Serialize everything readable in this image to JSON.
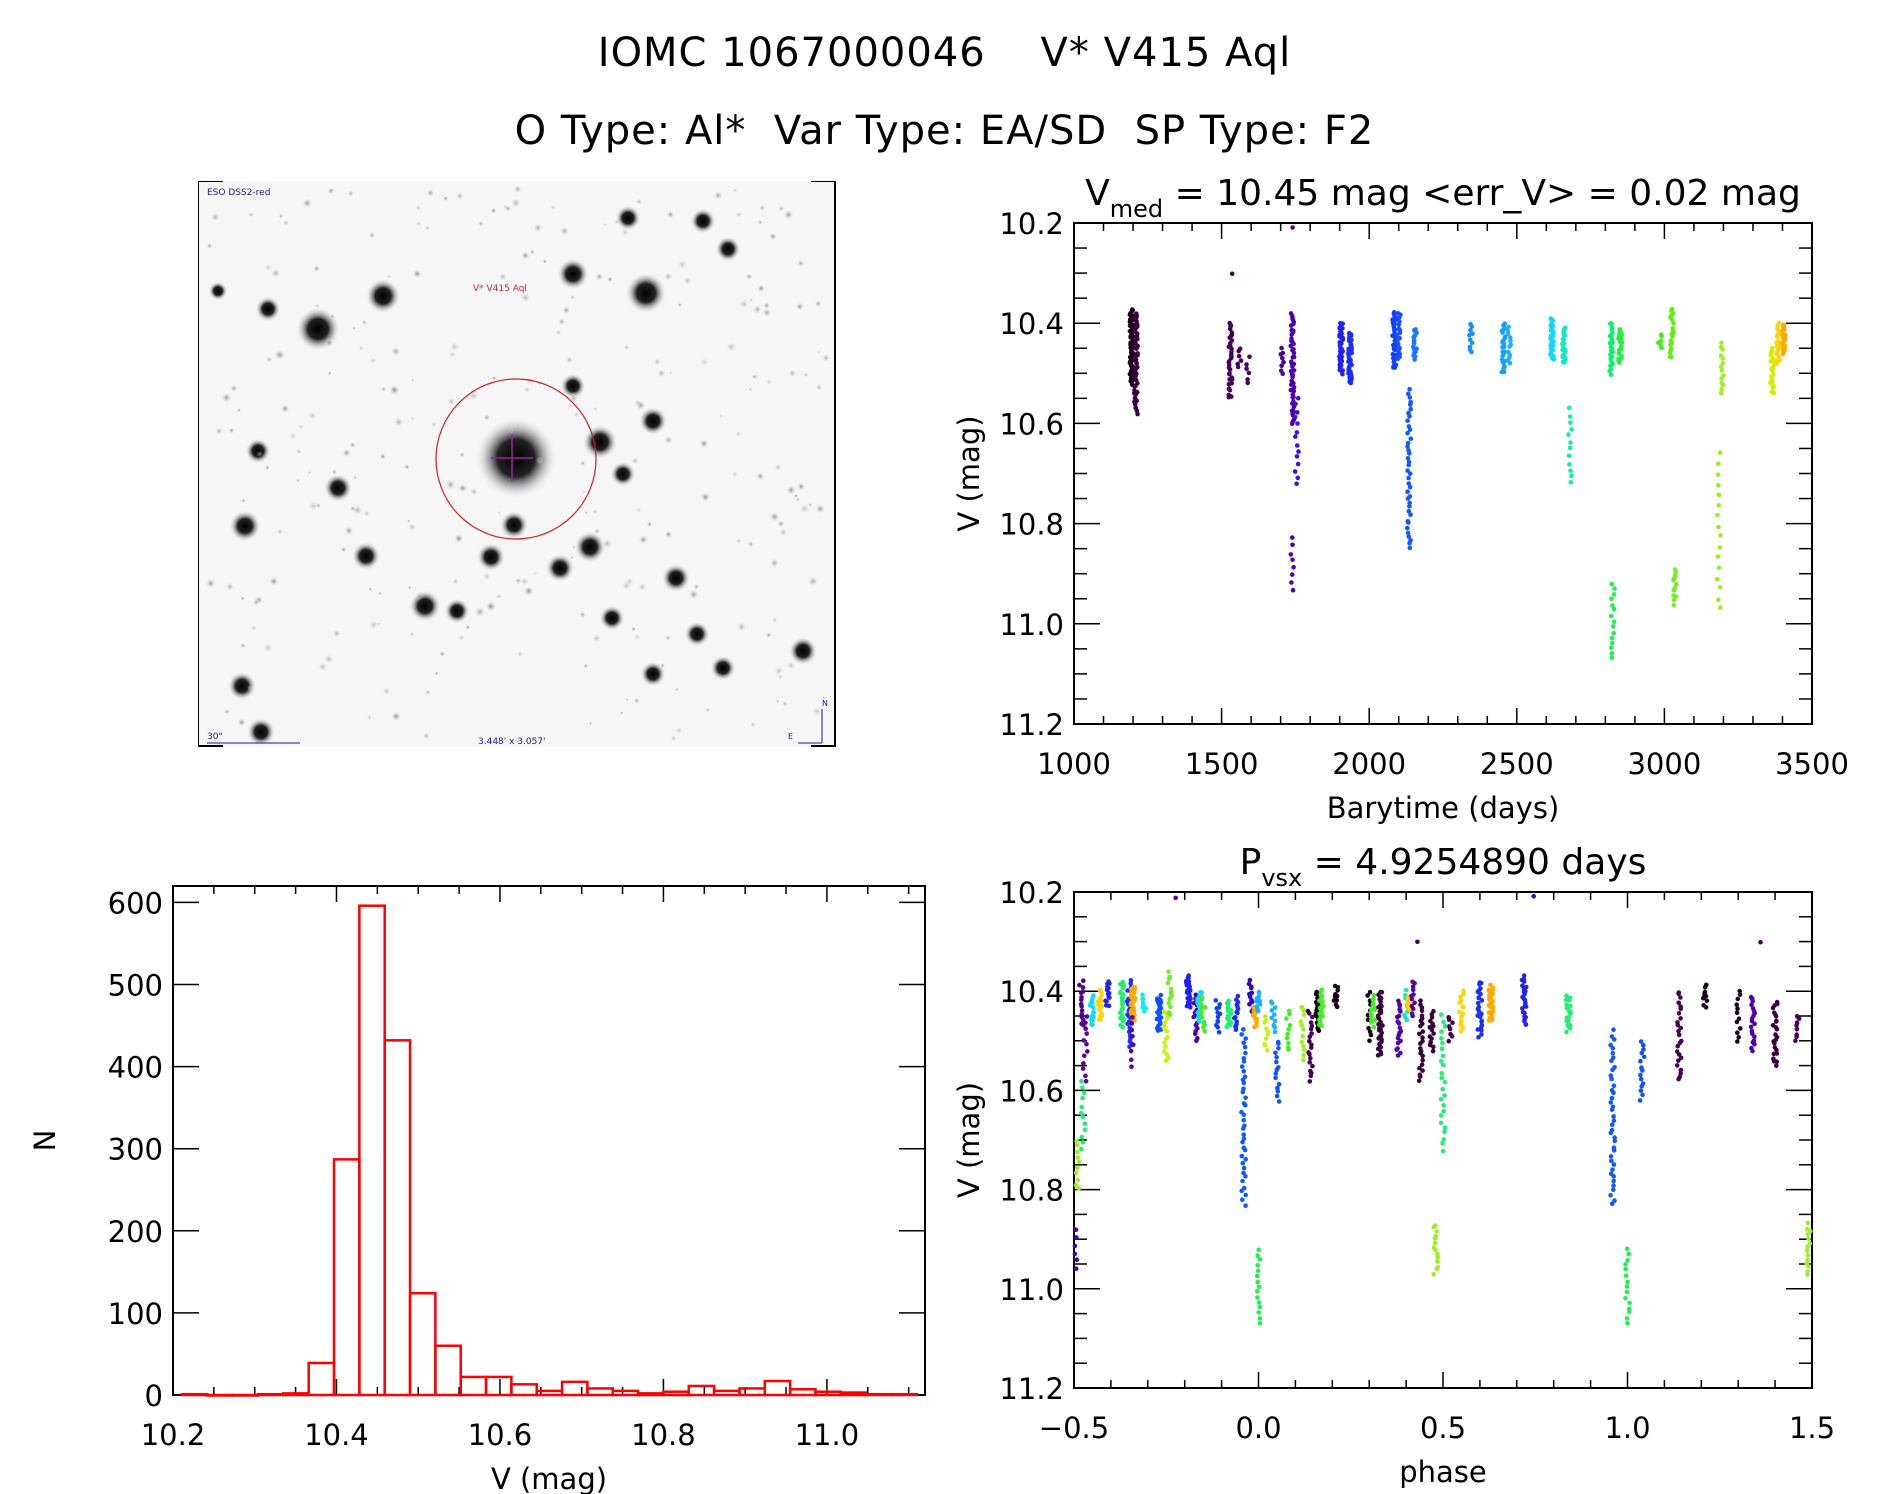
{
  "header": {
    "title_line1": "IOMC 1067000046    V* V415 Aql",
    "title_line2": "O Type: Al*  Var Type: EA/SD  SP Type: F2"
  },
  "finder_image": {
    "survey_label": "ESO DSS2-red",
    "target_label": "V* V415 Aql",
    "scale_bar_label": "30\"",
    "field_size_label": "3.448' x 3.057'",
    "compass": {
      "north": "N",
      "east": "E"
    },
    "colors": {
      "target_circle": "#cc2222",
      "labels": "#1a1a8c",
      "crosshair": "#a020a0"
    }
  },
  "chart_data": [
    {
      "id": "lightcurve",
      "type": "scatter",
      "title_main": "V",
      "title_sub": "med",
      "title_rest": " = 10.45 mag <err_V> = 0.02 mag",
      "xlabel": "Barytime (days)",
      "ylabel": "V (mag)",
      "xlim": [
        1000,
        3500
      ],
      "ylim": [
        11.2,
        10.2
      ],
      "y_inverted": true,
      "xticks": [
        1000,
        1500,
        2000,
        2500,
        3000,
        3500
      ],
      "xtick_labels": [
        "1000",
        "1500",
        "2000",
        "2500",
        "3000",
        "3500"
      ],
      "yticks": [
        10.2,
        10.4,
        10.6,
        10.8,
        11.0,
        11.2
      ],
      "ytick_labels": [
        "10.2",
        "10.4",
        "10.6",
        "10.8",
        "11.0",
        "11.2"
      ],
      "color_scale": "time-ordered rainbow (black → purple → blue → cyan → green → yellow → orange)",
      "groups": [
        {
          "x": 1195,
          "ymin": 10.37,
          "ymax": 10.52,
          "color": "#1a001a",
          "n": 60
        },
        {
          "x": 1210,
          "ymin": 10.38,
          "ymax": 10.58,
          "color": "#3a0040",
          "n": 50
        },
        {
          "x": 1530,
          "ymin": 10.4,
          "ymax": 10.55,
          "color": "#44005a",
          "n": 35
        },
        {
          "x": 1535,
          "ymin": 10.3,
          "ymax": 10.3,
          "color": "#44005a",
          "n": 1
        },
        {
          "x": 1560,
          "ymin": 10.45,
          "ymax": 10.49,
          "color": "#480060",
          "n": 6
        },
        {
          "x": 1590,
          "ymin": 10.47,
          "ymax": 10.52,
          "color": "#4a0068",
          "n": 6
        },
        {
          "x": 1705,
          "ymin": 10.45,
          "ymax": 10.5,
          "color": "#50008a",
          "n": 8
        },
        {
          "x": 1740,
          "ymin": 10.38,
          "ymax": 10.6,
          "color": "#5000aa",
          "n": 50
        },
        {
          "x": 1745,
          "ymin": 10.21,
          "ymax": 10.21,
          "color": "#5000aa",
          "n": 1
        },
        {
          "x": 1740,
          "ymin": 10.83,
          "ymax": 10.93,
          "color": "#5000aa",
          "n": 8
        },
        {
          "x": 1755,
          "ymin": 10.55,
          "ymax": 10.72,
          "color": "#3a10e0",
          "n": 14
        },
        {
          "x": 1905,
          "ymin": 10.4,
          "ymax": 10.5,
          "color": "#2222ee",
          "n": 40
        },
        {
          "x": 1935,
          "ymin": 10.42,
          "ymax": 10.52,
          "color": "#1c2cff",
          "n": 40
        },
        {
          "x": 2085,
          "ymin": 10.38,
          "ymax": 10.49,
          "color": "#1040ff",
          "n": 40
        },
        {
          "x": 2100,
          "ymin": 10.38,
          "ymax": 10.47,
          "color": "#1850ff",
          "n": 20
        },
        {
          "x": 2135,
          "ymin": 10.53,
          "ymax": 10.85,
          "color": "#1058ff",
          "n": 40
        },
        {
          "x": 2155,
          "ymin": 10.41,
          "ymax": 10.47,
          "color": "#1a78ff",
          "n": 20
        },
        {
          "x": 2345,
          "ymin": 10.4,
          "ymax": 10.46,
          "color": "#1890ff",
          "n": 10
        },
        {
          "x": 2455,
          "ymin": 10.4,
          "ymax": 10.5,
          "color": "#12a0ff",
          "n": 25
        },
        {
          "x": 2475,
          "ymin": 10.41,
          "ymax": 10.48,
          "color": "#18b0ff",
          "n": 12
        },
        {
          "x": 2620,
          "ymin": 10.39,
          "ymax": 10.47,
          "color": "#10d8ff",
          "n": 30
        },
        {
          "x": 2660,
          "ymin": 10.41,
          "ymax": 10.48,
          "color": "#10e8c0",
          "n": 25
        },
        {
          "x": 2680,
          "ymin": 10.57,
          "ymax": 10.72,
          "color": "#10f0a0",
          "n": 12
        },
        {
          "x": 2820,
          "ymin": 10.4,
          "ymax": 10.5,
          "color": "#10f070",
          "n": 25
        },
        {
          "x": 2850,
          "ymin": 10.41,
          "ymax": 10.48,
          "color": "#20f040",
          "n": 25
        },
        {
          "x": 2825,
          "ymin": 10.92,
          "ymax": 11.07,
          "color": "#20f050",
          "n": 15
        },
        {
          "x": 2985,
          "ymin": 10.42,
          "ymax": 10.45,
          "color": "#40f020",
          "n": 8
        },
        {
          "x": 3025,
          "ymin": 10.37,
          "ymax": 10.47,
          "color": "#60f010",
          "n": 20
        },
        {
          "x": 3035,
          "ymin": 10.89,
          "ymax": 10.96,
          "color": "#70f020",
          "n": 12
        },
        {
          "x": 3195,
          "ymin": 10.44,
          "ymax": 10.54,
          "color": "#a0f020",
          "n": 14
        },
        {
          "x": 3185,
          "ymin": 10.66,
          "ymax": 10.97,
          "color": "#98f020",
          "n": 16
        },
        {
          "x": 3365,
          "ymin": 10.45,
          "ymax": 10.54,
          "color": "#d0f000",
          "n": 20
        },
        {
          "x": 3385,
          "ymin": 10.4,
          "ymax": 10.48,
          "color": "#ffd400",
          "n": 20
        },
        {
          "x": 3405,
          "ymin": 10.4,
          "ymax": 10.46,
          "color": "#ffaa00",
          "n": 25
        }
      ]
    },
    {
      "id": "histogram",
      "type": "bar",
      "xlabel": "V (mag)",
      "ylabel": "N",
      "xlim": [
        10.2,
        11.12
      ],
      "ylim": [
        0,
        620
      ],
      "xticks": [
        10.2,
        10.4,
        10.6,
        10.8,
        11.0
      ],
      "xtick_labels": [
        "10.2",
        "10.4",
        "10.6",
        "10.8",
        "11.0"
      ],
      "yticks": [
        0,
        100,
        200,
        300,
        400,
        500,
        600
      ],
      "ytick_labels": [
        "0",
        "100",
        "200",
        "300",
        "400",
        "500",
        "600"
      ],
      "bar_color": "#ff0000",
      "bin_width": 0.031,
      "bin_left_edges": [
        10.211,
        10.242,
        10.273,
        10.304,
        10.335,
        10.366,
        10.397,
        10.428,
        10.459,
        10.49,
        10.521,
        10.552,
        10.583,
        10.614,
        10.645,
        10.676,
        10.707,
        10.738,
        10.769,
        10.8,
        10.831,
        10.862,
        10.893,
        10.924,
        10.955,
        10.986,
        11.017,
        11.048,
        11.079
      ],
      "values": [
        1,
        0,
        0,
        1,
        2,
        39,
        287,
        596,
        432,
        124,
        60,
        22,
        22,
        13,
        5,
        16,
        8,
        5,
        2,
        4,
        11,
        5,
        8,
        17,
        7,
        4,
        3,
        1,
        1
      ]
    },
    {
      "id": "phased",
      "type": "scatter",
      "title_main": "P",
      "title_sub": "vsx",
      "title_rest": " = 4.9254890 days",
      "xlabel": "phase",
      "ylabel": "V (mag)",
      "xlim": [
        -0.5,
        1.5
      ],
      "ylim": [
        11.2,
        10.2
      ],
      "y_inverted": true,
      "xticks": [
        -0.5,
        0.0,
        0.5,
        1.0,
        1.5
      ],
      "xtick_labels": [
        "−0.5",
        "0.0",
        "0.5",
        "1.0",
        "1.5"
      ],
      "yticks": [
        10.2,
        10.4,
        10.6,
        10.8,
        11.0,
        11.2
      ],
      "ytick_labels": [
        "10.2",
        "10.4",
        "10.6",
        "10.8",
        "11.0",
        "11.2"
      ],
      "primary_eclipse_depth_mag": 11.07,
      "secondary_eclipse_depth_mag": 10.97,
      "groups": [
        {
          "x": -0.48,
          "ymin": 10.38,
          "ymax": 10.47,
          "color": "#50008a",
          "n": 15
        },
        {
          "x": -0.47,
          "ymin": 10.45,
          "ymax": 10.58,
          "color": "#5a00a0",
          "n": 12
        },
        {
          "x": -0.475,
          "ymin": 10.58,
          "ymax": 10.72,
          "color": "#20f070",
          "n": 12
        },
        {
          "x": -0.49,
          "ymin": 10.7,
          "ymax": 10.8,
          "color": "#98f020",
          "n": 10
        },
        {
          "x": -0.495,
          "ymin": 10.88,
          "ymax": 10.96,
          "color": "#5000aa",
          "n": 6
        },
        {
          "x": -0.45,
          "ymin": 10.41,
          "ymax": 10.47,
          "color": "#10d8ff",
          "n": 15
        },
        {
          "x": -0.43,
          "ymin": 10.4,
          "ymax": 10.46,
          "color": "#ffd400",
          "n": 15
        },
        {
          "x": -0.41,
          "ymin": 10.38,
          "ymax": 10.43,
          "color": "#2222ee",
          "n": 14
        },
        {
          "x": -0.37,
          "ymin": 10.38,
          "ymax": 10.47,
          "color": "#20f070",
          "n": 25
        },
        {
          "x": -0.35,
          "ymin": 10.38,
          "ymax": 10.51,
          "color": "#1c2cff",
          "n": 25
        },
        {
          "x": -0.34,
          "ymin": 10.39,
          "ymax": 10.46,
          "color": "#ffaa00",
          "n": 30
        },
        {
          "x": -0.34,
          "ymin": 10.45,
          "ymax": 10.55,
          "color": "#5a00a0",
          "n": 8
        },
        {
          "x": -0.31,
          "ymin": 10.41,
          "ymax": 10.44,
          "color": "#10e8ff",
          "n": 8
        },
        {
          "x": -0.27,
          "ymin": 10.41,
          "ymax": 10.48,
          "color": "#1050ff",
          "n": 25
        },
        {
          "x": -0.25,
          "ymin": 10.44,
          "ymax": 10.54,
          "color": "#c8f010",
          "n": 15
        },
        {
          "x": -0.24,
          "ymin": 10.36,
          "ymax": 10.45,
          "color": "#70f020",
          "n": 12
        },
        {
          "x": -0.23,
          "ymin": 10.21,
          "ymax": 10.21,
          "color": "#5000aa",
          "n": 1
        },
        {
          "x": -0.19,
          "ymin": 10.37,
          "ymax": 10.43,
          "color": "#2222ee",
          "n": 25
        },
        {
          "x": -0.17,
          "ymin": 10.41,
          "ymax": 10.5,
          "color": "#5000aa",
          "n": 15
        },
        {
          "x": -0.16,
          "ymin": 10.4,
          "ymax": 10.46,
          "color": "#10d8ff",
          "n": 20
        },
        {
          "x": -0.15,
          "ymin": 10.41,
          "ymax": 10.48,
          "color": "#40f020",
          "n": 15
        },
        {
          "x": -0.11,
          "ymin": 10.42,
          "ymax": 10.48,
          "color": "#1040ff",
          "n": 12
        },
        {
          "x": -0.08,
          "ymin": 10.42,
          "ymax": 10.47,
          "color": "#20f070",
          "n": 20
        },
        {
          "x": -0.06,
          "ymin": 10.41,
          "ymax": 10.48,
          "color": "#1c2cff",
          "n": 15
        },
        {
          "x": -0.02,
          "ymin": 10.38,
          "ymax": 10.44,
          "color": "#3000cc",
          "n": 12
        },
        {
          "x": -0.01,
          "ymin": 10.43,
          "ymax": 10.47,
          "color": "#ffaa00",
          "n": 15
        },
        {
          "x": 0.0,
          "ymin": 10.4,
          "ymax": 10.44,
          "color": "#18b0ff",
          "n": 10
        },
        {
          "x": 0.02,
          "ymin": 10.45,
          "ymax": 10.52,
          "color": "#c8f010",
          "n": 10
        },
        {
          "x": 0.04,
          "ymin": 10.42,
          "ymax": 10.48,
          "color": "#18b0ff",
          "n": 10
        },
        {
          "x": -0.04,
          "ymin": 10.48,
          "ymax": 10.83,
          "color": "#1058ff",
          "n": 40
        },
        {
          "x": 0.0,
          "ymin": 10.92,
          "ymax": 11.07,
          "color": "#20f050",
          "n": 15
        },
        {
          "x": 0.05,
          "ymin": 10.5,
          "ymax": 10.62,
          "color": "#1050ff",
          "n": 15
        },
        {
          "x": 0.08,
          "ymin": 10.44,
          "ymax": 10.52,
          "color": "#40f020",
          "n": 10
        },
        {
          "x": 0.12,
          "ymin": 10.43,
          "ymax": 10.54,
          "color": "#a0f020",
          "n": 12
        },
        {
          "x": 0.14,
          "ymin": 10.44,
          "ymax": 10.58,
          "color": "#44005a",
          "n": 20
        },
        {
          "x": 0.16,
          "ymin": 10.4,
          "ymax": 10.48,
          "color": "#1a001a",
          "n": 25
        },
        {
          "x": 0.17,
          "ymin": 10.4,
          "ymax": 10.47,
          "color": "#40f020",
          "n": 25
        },
        {
          "x": 0.21,
          "ymin": 10.39,
          "ymax": 10.43,
          "color": "#1a001a",
          "n": 10
        },
        {
          "x": 0.3,
          "ymin": 10.4,
          "ymax": 10.5,
          "color": "#1a001a",
          "n": 12
        },
        {
          "x": 0.31,
          "ymin": 10.41,
          "ymax": 10.47,
          "color": "#40f020",
          "n": 15
        },
        {
          "x": 0.33,
          "ymin": 10.4,
          "ymax": 10.53,
          "color": "#3a0040",
          "n": 35
        },
        {
          "x": 0.38,
          "ymin": 10.42,
          "ymax": 10.53,
          "color": "#5000aa",
          "n": 20
        },
        {
          "x": 0.4,
          "ymin": 10.4,
          "ymax": 10.46,
          "color": "#10e8c0",
          "n": 10
        },
        {
          "x": 0.41,
          "ymin": 10.41,
          "ymax": 10.44,
          "color": "#ffd400",
          "n": 10
        },
        {
          "x": 0.42,
          "ymin": 10.38,
          "ymax": 10.45,
          "color": "#5a00a0",
          "n": 12
        },
        {
          "x": 0.43,
          "ymin": 10.3,
          "ymax": 10.3,
          "color": "#44005a",
          "n": 1
        },
        {
          "x": 0.44,
          "ymin": 10.42,
          "ymax": 10.58,
          "color": "#3a0040",
          "n": 25
        },
        {
          "x": 0.47,
          "ymin": 10.44,
          "ymax": 10.52,
          "color": "#3a0040",
          "n": 15
        },
        {
          "x": 0.52,
          "ymin": 10.45,
          "ymax": 10.5,
          "color": "#44005a",
          "n": 8
        },
        {
          "x": 0.48,
          "ymin": 10.87,
          "ymax": 10.97,
          "color": "#a0f020",
          "n": 14
        },
        {
          "x": 0.5,
          "ymin": 10.45,
          "ymax": 10.72,
          "color": "#20f070",
          "n": 25
        },
        {
          "x": 0.55,
          "ymin": 10.4,
          "ymax": 10.48,
          "color": "#ffd400",
          "n": 15
        },
        {
          "x": 0.6,
          "ymin": 10.38,
          "ymax": 10.49,
          "color": "#1c2cff",
          "n": 25
        },
        {
          "x": 0.63,
          "ymin": 10.39,
          "ymax": 10.46,
          "color": "#ffaa00",
          "n": 30
        },
        {
          "x": 0.75,
          "ymin": 10.21,
          "ymax": 10.21,
          "color": "#5000aa",
          "n": 1
        },
        {
          "x": 0.72,
          "ymin": 10.37,
          "ymax": 10.47,
          "color": "#2222ee",
          "n": 25
        },
        {
          "x": 0.84,
          "ymin": 10.41,
          "ymax": 10.48,
          "color": "#20f070",
          "n": 20
        },
        {
          "x": 0.96,
          "ymin": 10.48,
          "ymax": 10.83,
          "color": "#1058ff",
          "n": 40
        },
        {
          "x": 1.0,
          "ymin": 10.92,
          "ymax": 11.07,
          "color": "#20f050",
          "n": 15
        },
        {
          "x": 1.04,
          "ymin": 10.5,
          "ymax": 10.62,
          "color": "#1050ff",
          "n": 15
        },
        {
          "x": 1.14,
          "ymin": 10.4,
          "ymax": 10.58,
          "color": "#44005a",
          "n": 25
        },
        {
          "x": 1.21,
          "ymin": 10.39,
          "ymax": 10.43,
          "color": "#1a001a",
          "n": 10
        },
        {
          "x": 1.3,
          "ymin": 10.4,
          "ymax": 10.5,
          "color": "#1a001a",
          "n": 12
        },
        {
          "x": 1.34,
          "ymin": 10.41,
          "ymax": 10.52,
          "color": "#5000aa",
          "n": 20
        },
        {
          "x": 1.36,
          "ymin": 10.3,
          "ymax": 10.3,
          "color": "#44005a",
          "n": 1
        },
        {
          "x": 1.4,
          "ymin": 10.42,
          "ymax": 10.55,
          "color": "#3a0040",
          "n": 25
        },
        {
          "x": 1.46,
          "ymin": 10.45,
          "ymax": 10.5,
          "color": "#44005a",
          "n": 8
        },
        {
          "x": 1.49,
          "ymin": 10.87,
          "ymax": 10.97,
          "color": "#a0f020",
          "n": 14
        }
      ]
    }
  ]
}
